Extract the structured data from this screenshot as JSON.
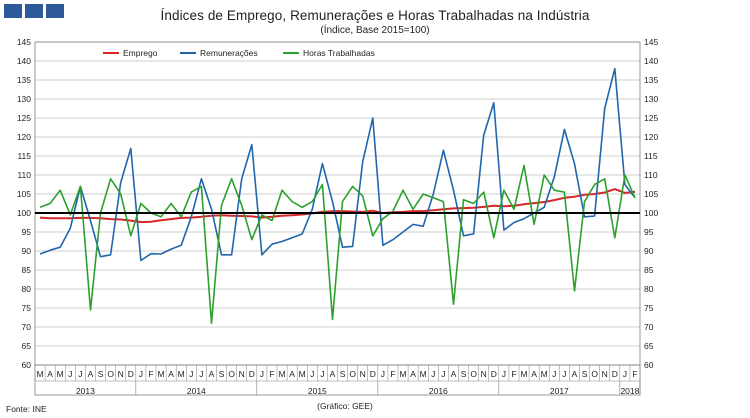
{
  "header": {
    "title": "Índices de Emprego, Remunerações e Horas Trabalhadas na Indústria",
    "subtitle": "(Índice, Base 2015=100)"
  },
  "footer": {
    "source": "Fonte: INE",
    "credit": "(Gráfico: GEE)"
  },
  "colors": {
    "emprego": "#d62728",
    "remuneracoes": "#2166ac",
    "horas": "#2ca02c",
    "reference": "#000000",
    "grid": "#bfbfbf",
    "logo": "#2e5a9c"
  },
  "chart_data": {
    "type": "line",
    "title": "Índices de Emprego, Remunerações e Horas Trabalhadas na Indústria",
    "subtitle": "(Índice, Base 2015=100)",
    "xlabel": "",
    "ylabel": "",
    "ylim": [
      60,
      145
    ],
    "yticks": [
      60,
      65,
      70,
      75,
      80,
      85,
      90,
      95,
      100,
      105,
      110,
      115,
      120,
      125,
      130,
      135,
      140,
      145
    ],
    "grid": true,
    "legend": "top-left",
    "reference_line": 100,
    "x": [
      "M",
      "A",
      "M",
      "J",
      "J",
      "A",
      "S",
      "O",
      "N",
      "D",
      "J",
      "F",
      "M",
      "A",
      "M",
      "J",
      "J",
      "A",
      "S",
      "O",
      "N",
      "D",
      "J",
      "F",
      "M",
      "A",
      "M",
      "J",
      "J",
      "A",
      "S",
      "O",
      "N",
      "D",
      "J",
      "F",
      "M",
      "A",
      "M",
      "J",
      "J",
      "A",
      "S",
      "O",
      "N",
      "D",
      "J",
      "F",
      "M",
      "A",
      "M",
      "J",
      "J",
      "A",
      "S",
      "O",
      "N",
      "D",
      "J",
      "F"
    ],
    "years": [
      {
        "label": "2013",
        "start": 0,
        "end": 9
      },
      {
        "label": "2014",
        "start": 10,
        "end": 21
      },
      {
        "label": "2015",
        "start": 22,
        "end": 33
      },
      {
        "label": "2016",
        "start": 34,
        "end": 45
      },
      {
        "label": "2017",
        "start": 46,
        "end": 57
      },
      {
        "label": "2018",
        "start": 58,
        "end": 59
      }
    ],
    "series": [
      {
        "name": "Emprego",
        "key": "emprego",
        "values": [
          98.8,
          98.6,
          98.6,
          98.6,
          98.7,
          98.7,
          98.6,
          98.4,
          98.3,
          98.0,
          97.6,
          97.7,
          98.1,
          98.4,
          98.7,
          98.8,
          99.0,
          99.3,
          99.4,
          99.3,
          99.2,
          99.1,
          98.8,
          99.0,
          99.3,
          99.4,
          99.6,
          99.9,
          100.3,
          100.5,
          100.5,
          100.4,
          100.3,
          100.6,
          100.0,
          100.2,
          100.3,
          100.5,
          100.5,
          100.7,
          101.0,
          101.2,
          101.3,
          101.4,
          101.6,
          101.9,
          101.8,
          101.9,
          102.3,
          102.6,
          102.9,
          103.4,
          104.0,
          104.3,
          104.8,
          105.0,
          105.4,
          106.3,
          105.3,
          105.6
        ]
      },
      {
        "name": "Remunerações",
        "key": "remuneracoes",
        "values": [
          89.2,
          90.2,
          91.0,
          96.0,
          107.0,
          98.0,
          88.5,
          89.0,
          108.0,
          117.0,
          87.5,
          89.3,
          89.2,
          90.5,
          91.5,
          99.0,
          109.0,
          101.0,
          89.0,
          89.0,
          109.0,
          118.0,
          89.0,
          91.8,
          92.5,
          93.5,
          94.5,
          101.0,
          113.0,
          103.0,
          91.0,
          91.2,
          113.5,
          125.0,
          91.5,
          93.0,
          95.0,
          97.0,
          96.5,
          105.0,
          116.5,
          106.0,
          94.0,
          94.5,
          120.5,
          129.0,
          95.5,
          97.5,
          98.5,
          100.0,
          101.5,
          109.5,
          122.0,
          113.0,
          99.0,
          99.2,
          127.5,
          138.0,
          107.5,
          104.0
        ]
      },
      {
        "name": "Horas Trabalhadas",
        "key": "horas",
        "values": [
          101.5,
          102.5,
          106.0,
          99.5,
          107.0,
          74.5,
          100.0,
          109.0,
          105.0,
          94.0,
          102.5,
          100.0,
          99.0,
          102.5,
          99.0,
          105.5,
          107.0,
          71.0,
          102.0,
          109.0,
          102.0,
          93.0,
          99.5,
          98.0,
          106.0,
          103.0,
          101.5,
          103.0,
          107.5,
          72.0,
          103.0,
          107.0,
          104.5,
          94.0,
          98.5,
          100.5,
          106.0,
          101.0,
          105.0,
          104.0,
          103.0,
          76.0,
          103.5,
          102.5,
          105.5,
          93.5,
          106.0,
          101.0,
          112.5,
          97.0,
          110.0,
          106.0,
          105.5,
          79.5,
          103.0,
          107.5,
          109.0,
          93.5,
          110.0,
          104.0
        ]
      }
    ]
  }
}
